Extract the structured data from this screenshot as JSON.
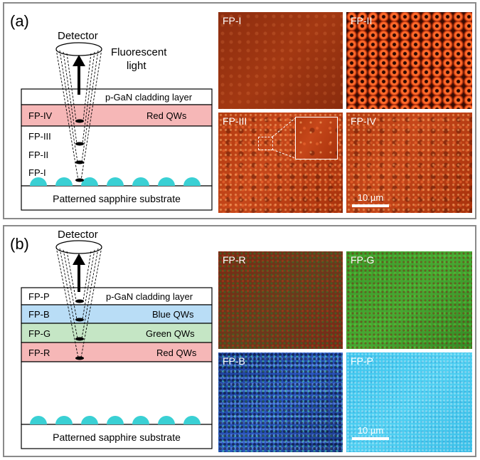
{
  "panel_a": {
    "label": "(a)",
    "diagram": {
      "detector": "Detector",
      "fluorescent_line1": "Fluorescent",
      "fluorescent_line2": "light",
      "cladding": "p-GaN cladding layer",
      "qw": "Red QWs",
      "fp_iv": "FP-IV",
      "fp_iii": "FP-III",
      "fp_ii": "FP-II",
      "fp_i": "FP-I",
      "substrate": "Patterned sapphire substrate"
    },
    "images": [
      {
        "label": "FP-I"
      },
      {
        "label": "FP-II"
      },
      {
        "label": "FP-III"
      },
      {
        "label": "FP-IV"
      }
    ],
    "scale_bar": "10 µm"
  },
  "panel_b": {
    "label": "(b)",
    "diagram": {
      "detector": "Detector",
      "fp_p": "FP-P",
      "cladding": "p-GaN cladding layer",
      "fp_b": "FP-B",
      "blue": "Blue QWs",
      "fp_g": "FP-G",
      "green": "Green QWs",
      "fp_r": "FP-R",
      "red": "Red QWs",
      "substrate": "Patterned sapphire substrate"
    },
    "images": [
      {
        "label": "FP-R"
      },
      {
        "label": "FP-G"
      },
      {
        "label": "FP-B"
      },
      {
        "label": "FP-P"
      }
    ],
    "scale_bar": "10 µm"
  },
  "colors": {
    "red_layer": "#f6b7b7",
    "blue_layer": "#b9ddf6",
    "green_layer": "#c5e6c5",
    "bumps": "#3ad0d4",
    "border": "#8a8a8a"
  }
}
